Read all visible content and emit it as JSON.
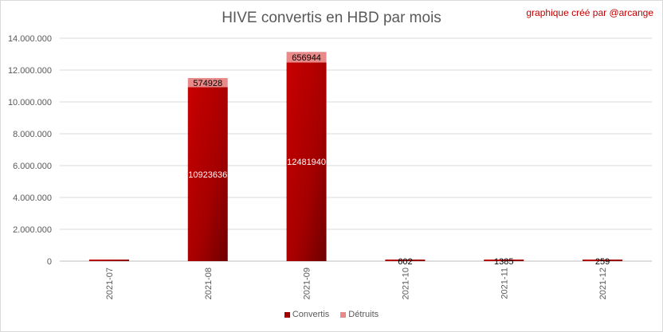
{
  "chart_data": {
    "type": "bar",
    "stacked": true,
    "title": "HIVE convertis en HBD par mois",
    "credit": "graphique créé par @arcange",
    "categories": [
      "2021-07",
      "2021-08",
      "2021-09",
      "2021-10",
      "2021-11",
      "2021-12"
    ],
    "series": [
      {
        "name": "Convertis",
        "color": "#a50000",
        "values": [
          80000,
          10923636,
          12481940,
          602,
          1385,
          259
        ]
      },
      {
        "name": "Détruits",
        "color": "#e88a8a",
        "values": [
          0,
          574928,
          656944,
          0,
          0,
          0
        ]
      }
    ],
    "data_labels": {
      "Convertis": [
        "",
        "10923636",
        "12481940",
        "602",
        "1385",
        "259"
      ],
      "Détruits": [
        "",
        "574928",
        "656944",
        "",
        "",
        ""
      ]
    },
    "ylim": [
      0,
      14000000
    ],
    "yticks": [
      0,
      2000000,
      4000000,
      6000000,
      8000000,
      10000000,
      12000000,
      14000000
    ],
    "ytick_labels": [
      "0",
      "2.000.000",
      "4.000.000",
      "6.000.000",
      "8.000.000",
      "10.000.000",
      "12.000.000",
      "14.000.000"
    ],
    "grid": true,
    "legend_position": "bottom"
  }
}
